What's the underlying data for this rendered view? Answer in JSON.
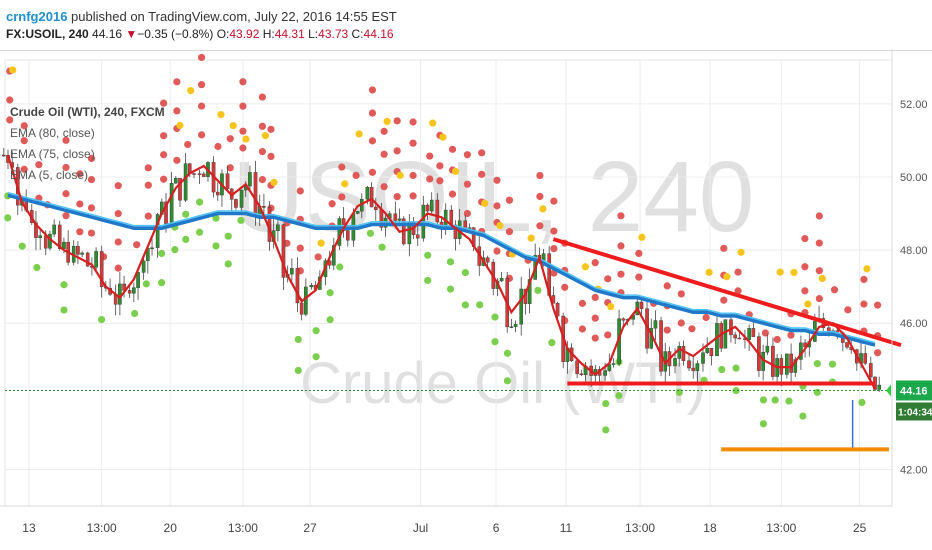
{
  "header": {
    "author": "crnfg2016",
    "published": "published on TradingView.com, July 22, 2016 14:55 EST",
    "symbol_line": "FX:USOIL, 240",
    "last": "44.16",
    "arrow": "▼",
    "change": "−0.35 (−0.8%)",
    "o_label": "O:",
    "o_value": "43.92",
    "h_label": "H:",
    "h_value": "44.31",
    "l_label": "L:",
    "l_value": "43.73",
    "c_label": "C:",
    "c_value": "44.16"
  },
  "legend": {
    "title": "Crude Oil (WTI), 240, FXCM",
    "ema1": "EMA (80, close)",
    "ema2": "EMA (75, close)",
    "ema3": "EMA (5, close)"
  },
  "watermark": {
    "symbol": "USOIL, 240",
    "name": "Crude Oil (WTI)"
  },
  "price_tags": {
    "price": "44.16",
    "countdown": "1:04:34",
    "price_color": "#1aa84a",
    "countdown_color": "#2e7d32"
  },
  "colors": {
    "ema_long": "#1f78c8",
    "ema_long2": "#4fc3f7",
    "ema_short": "#d42020",
    "trendline": "#ee1c1c",
    "support": "#ee1c1c",
    "target": "#f28c00",
    "bull": "#2e8b2e",
    "bear": "#d43a3a",
    "dot_red": "#e05a5a",
    "dot_yellow": "#f5c51d",
    "dot_green": "#7ccf4e"
  },
  "chart_data": {
    "type": "line",
    "y_ticks": [
      "52.00",
      "50.00",
      "48.00",
      "46.00",
      "42.00"
    ],
    "x_ticks": [
      "13",
      "13:00",
      "20",
      "13:00",
      "27",
      "Jul",
      "6",
      "11",
      "13:00",
      "18",
      "13:00",
      "25"
    ],
    "ylim": [
      41.0,
      53.2
    ],
    "series": [
      {
        "name": "EMA (5, close)",
        "values": [
          50.6,
          49.3,
          48.7,
          48.3,
          48.0,
          47.8,
          47.6,
          47.0,
          46.7,
          47.2,
          48.1,
          49.0,
          49.7,
          50.1,
          50.3,
          49.9,
          49.5,
          49.8,
          49.2,
          48.3,
          47.3,
          46.6,
          46.9,
          47.8,
          48.6,
          49.2,
          49.4,
          49.0,
          48.5,
          48.6,
          49.0,
          48.9,
          48.6,
          48.3,
          47.7,
          47.1,
          46.3,
          46.8,
          47.8,
          46.4,
          45.3,
          44.9,
          44.6,
          44.9,
          45.9,
          46.4,
          45.7,
          44.9,
          45.3,
          45.1,
          45.4,
          45.7,
          45.9,
          45.5,
          45.0,
          44.8,
          44.8,
          45.3,
          45.9,
          46.0,
          45.6,
          44.9,
          44.2
        ]
      },
      {
        "name": "EMA (75, close)",
        "values": [
          49.5,
          49.4,
          49.3,
          49.2,
          49.1,
          49.0,
          48.9,
          48.8,
          48.7,
          48.6,
          48.6,
          48.6,
          48.7,
          48.8,
          48.9,
          49.0,
          49.0,
          49.0,
          48.9,
          48.9,
          48.8,
          48.7,
          48.6,
          48.6,
          48.6,
          48.6,
          48.7,
          48.7,
          48.7,
          48.7,
          48.7,
          48.6,
          48.6,
          48.5,
          48.4,
          48.2,
          48.0,
          47.8,
          47.7,
          47.5,
          47.3,
          47.1,
          46.9,
          46.8,
          46.7,
          46.7,
          46.6,
          46.5,
          46.4,
          46.3,
          46.3,
          46.2,
          46.2,
          46.1,
          46.0,
          45.9,
          45.8,
          45.8,
          45.7,
          45.7,
          45.6,
          45.5,
          45.4
        ]
      }
    ],
    "annotations": [
      {
        "label": "falling trendline",
        "x0": 39,
        "y0": 48.3,
        "x1": 63,
        "y1": 45.4
      },
      {
        "label": "support",
        "x0": 40,
        "y0": 44.35,
        "x1": 62,
        "y1": 44.35
      },
      {
        "label": "target",
        "x0": 51,
        "y0": 42.55,
        "x1": 63,
        "y1": 42.55
      },
      {
        "label": "last price",
        "y": 44.16
      }
    ]
  }
}
